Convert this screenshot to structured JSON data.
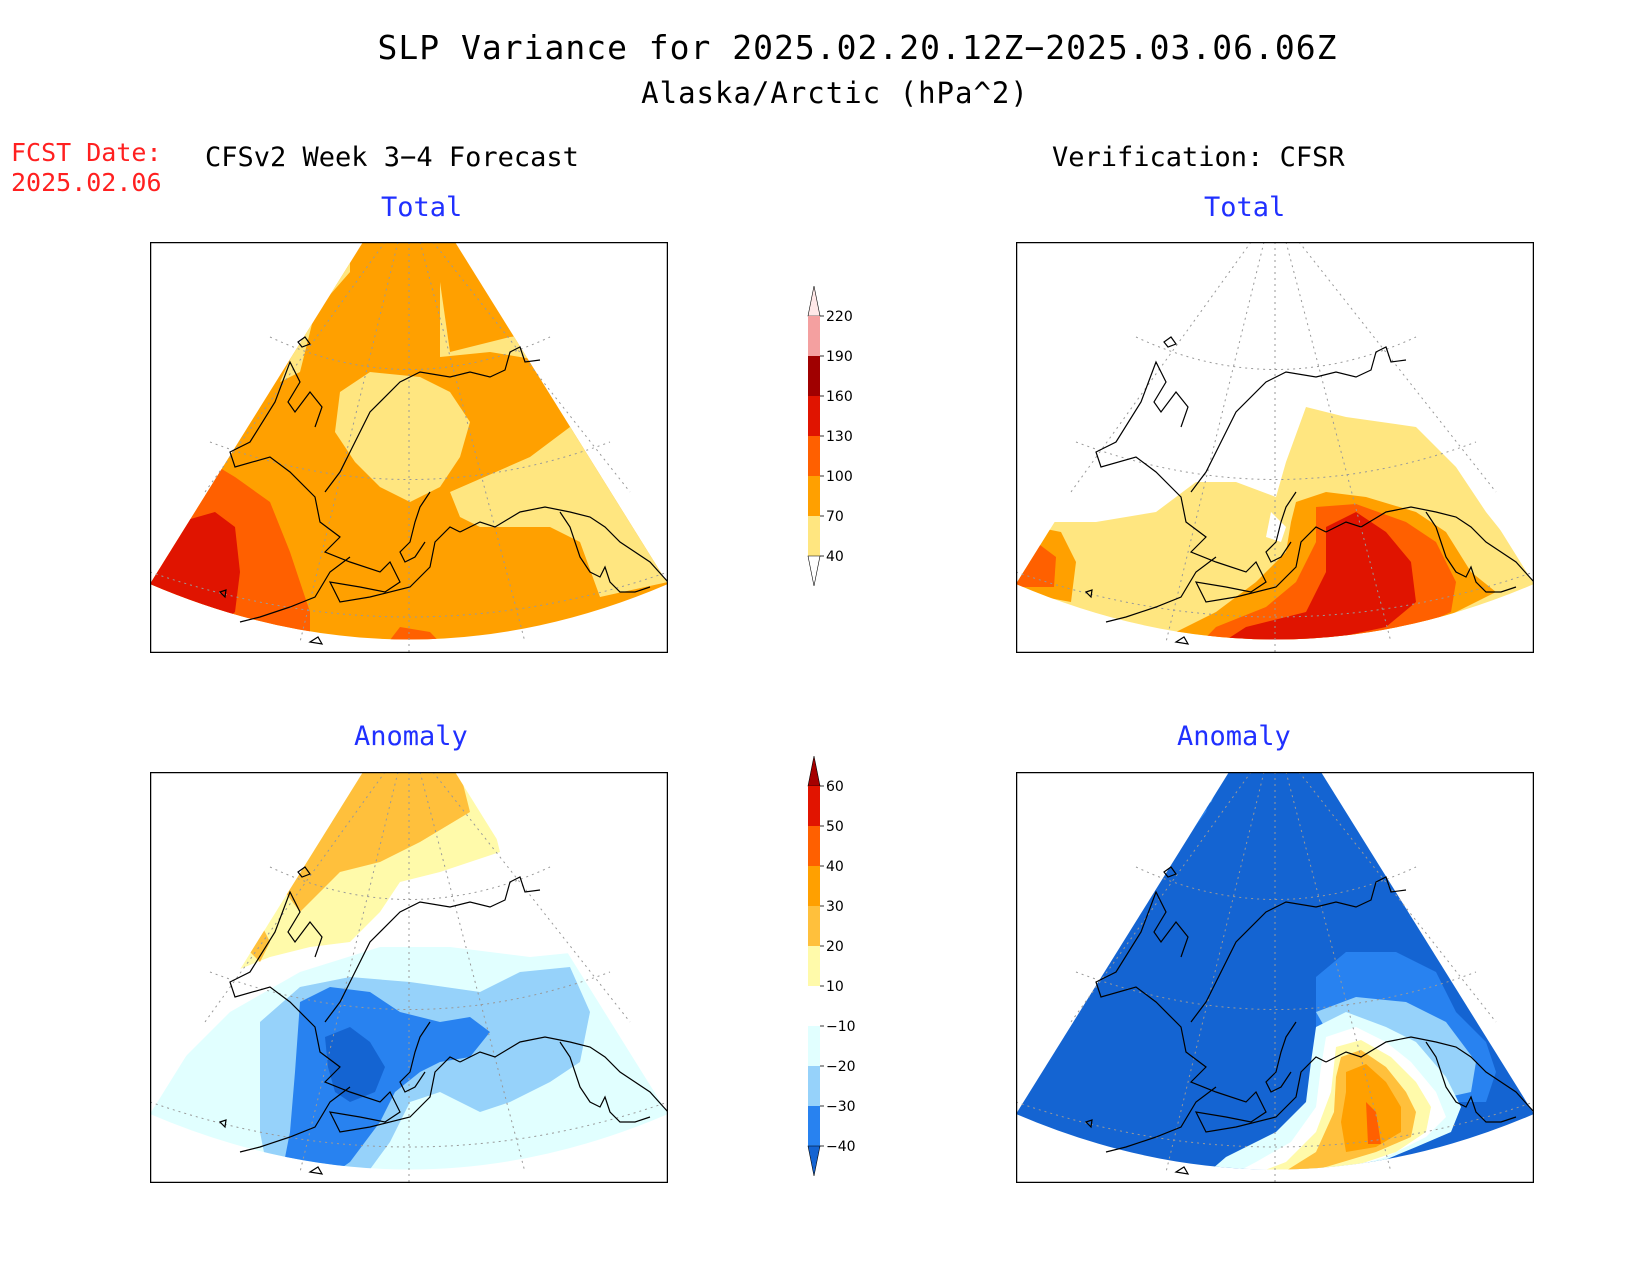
{
  "title": "SLP Variance for 2025.02.20.12Z−2025.03.06.06Z",
  "subtitle": "Alaska/Arctic (hPa^2)",
  "fcst_date": {
    "label": "FCST Date:",
    "value": "2025.02.06"
  },
  "left_column_title": "CFSv2 Week 3−4 Forecast",
  "right_column_title": "Verification: CFSR",
  "panels": {
    "fc_total": {
      "title": "Total"
    },
    "obs_total": {
      "title": "Total"
    },
    "fc_anom": {
      "title": "Anomaly"
    },
    "obs_anom": {
      "title": "Anomaly"
    }
  },
  "total_colorbar": {
    "levels": [
      "40",
      "70",
      "100",
      "130",
      "160",
      "190",
      "220"
    ],
    "colors": [
      "#ffffff",
      "#ffe680",
      "#ffa000",
      "#ff6000",
      "#e01400",
      "#a00000",
      "#f4a0a0",
      "#ffe8e8"
    ]
  },
  "anomaly_colorbar": {
    "levels": [
      "−40",
      "−30",
      "−20",
      "−10",
      "10",
      "20",
      "30",
      "40",
      "50",
      "60"
    ],
    "colors": [
      "#1464d2",
      "#2882f0",
      "#96d2fa",
      "#e1ffff",
      "#ffffff",
      "#fffaaa",
      "#ffc03c",
      "#ffa000",
      "#ff6000",
      "#e11400",
      "#a50000"
    ]
  },
  "palette": {
    "total": {
      "c40": "#ffe680",
      "c70": "#ffa000",
      "c100": "#ff6000",
      "c130": "#e01400",
      "c160": "#a00000"
    },
    "anomaly": {
      "n40": "#1464d2",
      "n30": "#2882f0",
      "n20": "#96d2fa",
      "n10": "#e1ffff",
      "p10": "#fffaaa",
      "p20": "#ffc03c",
      "p30": "#ffa000",
      "p40": "#ff6000"
    }
  }
}
